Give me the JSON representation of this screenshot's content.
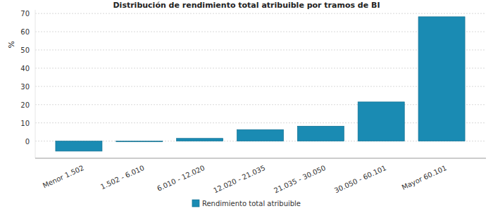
{
  "chart_data": {
    "type": "bar",
    "title": "Distribución de rendimiento total atribuible por tramos de BI",
    "y_label": "%",
    "categories": [
      "Menor 1.502",
      "1.502 - 6.010",
      "6.010 - 12.020",
      "12.020 - 21.035",
      "21.035 - 30.050",
      "30.050 - 60.101",
      "Mayor 60.101"
    ],
    "series": [
      {
        "name": "Rendimiento total atribuible",
        "color": "#1a8bb3",
        "values": [
          -5.5,
          -0.3,
          1.5,
          6.3,
          8.2,
          21.5,
          68.2
        ]
      }
    ],
    "ylim": [
      -9.4,
      72
    ],
    "yticks": [
      0,
      10,
      20,
      30,
      40,
      50,
      60,
      70
    ],
    "grid": true,
    "legend": "bottom"
  }
}
